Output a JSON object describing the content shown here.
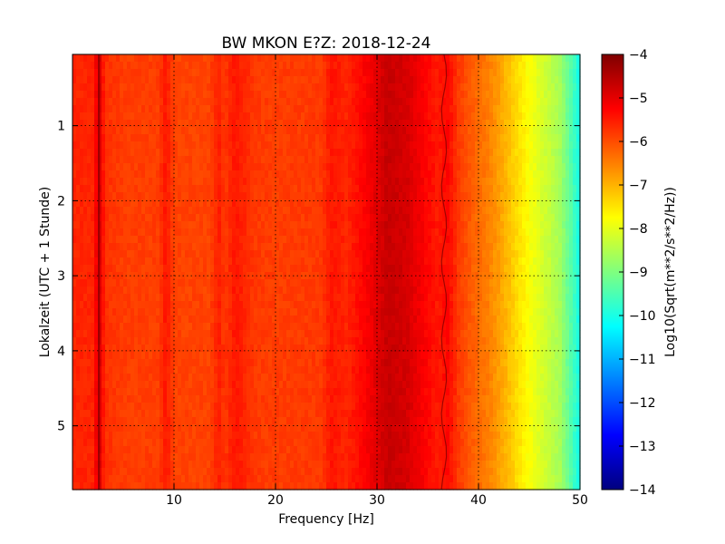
{
  "chart_data": {
    "type": "heatmap",
    "title": "BW MKON E?Z: 2018-12-24",
    "xlabel": "Frequency [Hz]",
    "ylabel": "Lokalzeit (UTC + 1 Stunde)",
    "xlim": [
      0,
      50
    ],
    "ylim": [
      5.85,
      0.05
    ],
    "y_inverted": true,
    "x_ticks": [
      10,
      20,
      30,
      40,
      50
    ],
    "y_ticks": [
      1,
      2,
      3,
      4,
      5
    ],
    "grid": true,
    "colormap": "jet",
    "colorbar": {
      "label": "Log10(Sqrt(m**2/s**2/Hz))",
      "range": [
        -14,
        -4
      ],
      "ticks": [
        -4,
        -5,
        -6,
        -7,
        -8,
        -9,
        -10,
        -11,
        -12,
        -13,
        -14
      ]
    },
    "spectral_profile": {
      "frequency_hz": [
        0,
        2,
        2.6,
        3.2,
        5,
        8.5,
        9.2,
        10,
        13.5,
        14.5,
        15,
        16,
        18,
        20,
        24.5,
        25.5,
        27,
        29,
        31,
        33,
        34.5,
        36,
        37,
        38,
        39.5,
        41,
        42,
        43.5,
        45,
        46.5,
        48,
        49.2,
        50
      ],
      "log_amplitude": [
        -5.6,
        -5.6,
        -4.8,
        -5.7,
        -5.85,
        -5.85,
        -5.45,
        -5.9,
        -5.9,
        -5.55,
        -5.8,
        -5.45,
        -5.8,
        -5.85,
        -5.8,
        -5.45,
        -5.6,
        -5.2,
        -4.7,
        -4.85,
        -5.2,
        -5.5,
        -5.3,
        -5.8,
        -6.2,
        -6.5,
        -6.8,
        -7.3,
        -7.8,
        -8.2,
        -8.6,
        -9.5,
        -10.1
      ]
    },
    "features": [
      {
        "frequency_hz": 2.6,
        "description": "narrow dark red line"
      },
      {
        "frequency_hz": 36.6,
        "description": "thin wandering dark line"
      }
    ]
  },
  "colors": {
    "background": "#ffffff",
    "jet_stops": [
      "#00007f",
      "#0000ff",
      "#007fff",
      "#00ffff",
      "#7fff7f",
      "#ffff00",
      "#ff7f00",
      "#ff0000",
      "#7f0000"
    ]
  }
}
